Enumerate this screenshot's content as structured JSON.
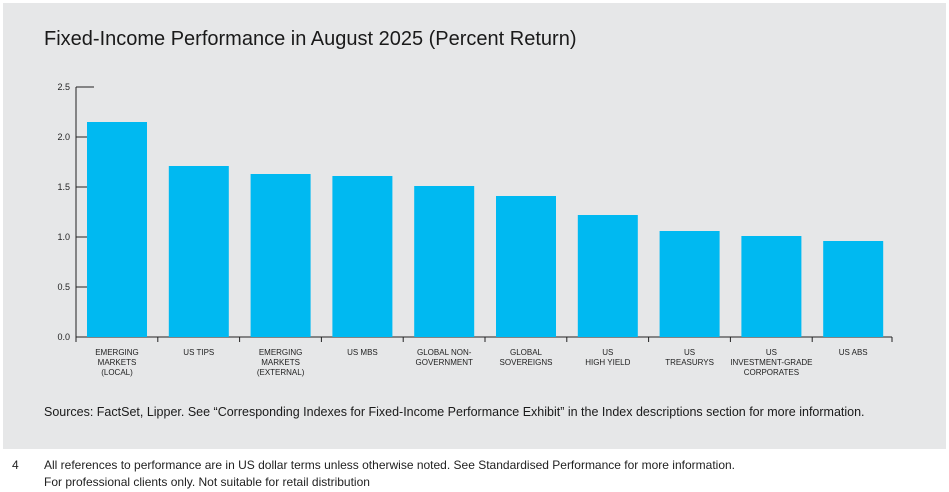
{
  "chart_data": {
    "type": "bar",
    "title": "Fixed-Income Performance in August 2025 (Percent Return)",
    "categories": [
      [
        "EMERGING",
        "MARKETS",
        "(LOCAL)"
      ],
      [
        "US TIPS"
      ],
      [
        "EMERGING",
        "MARKETS",
        "(EXTERNAL)"
      ],
      [
        "US MBS"
      ],
      [
        "GLOBAL NON-",
        "GOVERNMENT"
      ],
      [
        "GLOBAL",
        "SOVEREIGNS"
      ],
      [
        "US",
        "HIGH YIELD"
      ],
      [
        "US",
        "TREASURYS"
      ],
      [
        "US",
        "INVESTMENT-GRADE",
        "CORPORATES"
      ],
      [
        "US ABS"
      ]
    ],
    "values": [
      2.15,
      1.71,
      1.63,
      1.61,
      1.51,
      1.41,
      1.22,
      1.06,
      1.01,
      0.96
    ],
    "ylim": [
      0,
      2.5
    ],
    "yticks": [
      "0.0",
      "0.5",
      "1.0",
      "1.5",
      "2.0",
      "2.5"
    ],
    "grid": false,
    "bar_color": "#00b9f1"
  },
  "sources": "Sources: FactSet, Lipper. See “Corresponding Indexes for Fixed-Income Performance Exhibit” in the Index descriptions section for more information.",
  "footer": {
    "page_number": "4",
    "line1": "All references to performance are in US dollar terms unless otherwise noted. See Standardised Performance for more information.",
    "line2": "For professional clients only. Not suitable for retail distribution"
  }
}
